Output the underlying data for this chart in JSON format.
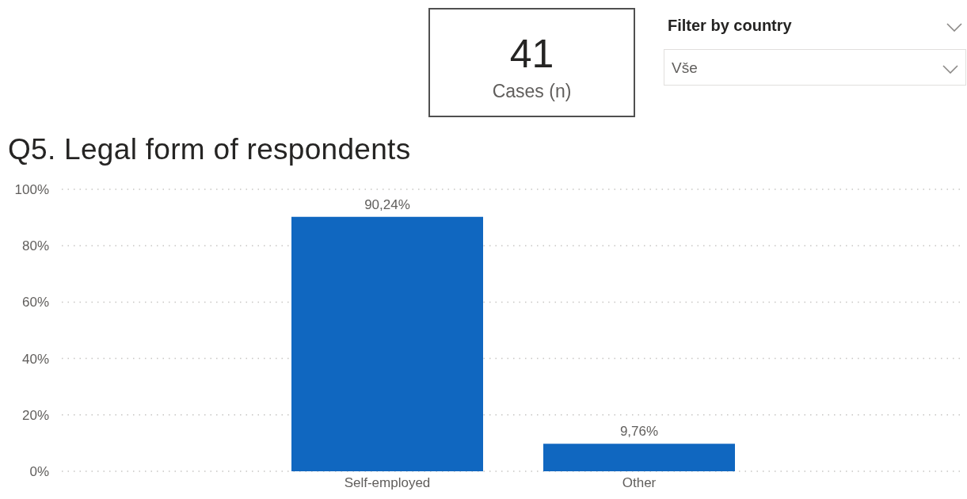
{
  "chart_data": [
    {
      "type": "other",
      "annotations": [
        "41",
        "Cases (n)"
      ]
    },
    {
      "type": "other",
      "title": "Filter by country",
      "annotations": [
        "Vše"
      ]
    },
    {
      "type": "bar",
      "title": "Q5. Legal form of respondents",
      "categories": [
        "Self-employed",
        "Other"
      ],
      "values": [
        90.24,
        9.76
      ],
      "value_labels": [
        "90,24%",
        "9,76%"
      ],
      "color": "#1067c0",
      "ylim": [
        0,
        100
      ],
      "yticks": [
        {
          "value": 0,
          "label": "0%"
        },
        {
          "value": 20,
          "label": "20%"
        },
        {
          "value": 40,
          "label": "40%"
        },
        {
          "value": 60,
          "label": "60%"
        },
        {
          "value": 80,
          "label": "80%"
        },
        {
          "value": 100,
          "label": "100%"
        }
      ],
      "grid": "y"
    }
  ]
}
